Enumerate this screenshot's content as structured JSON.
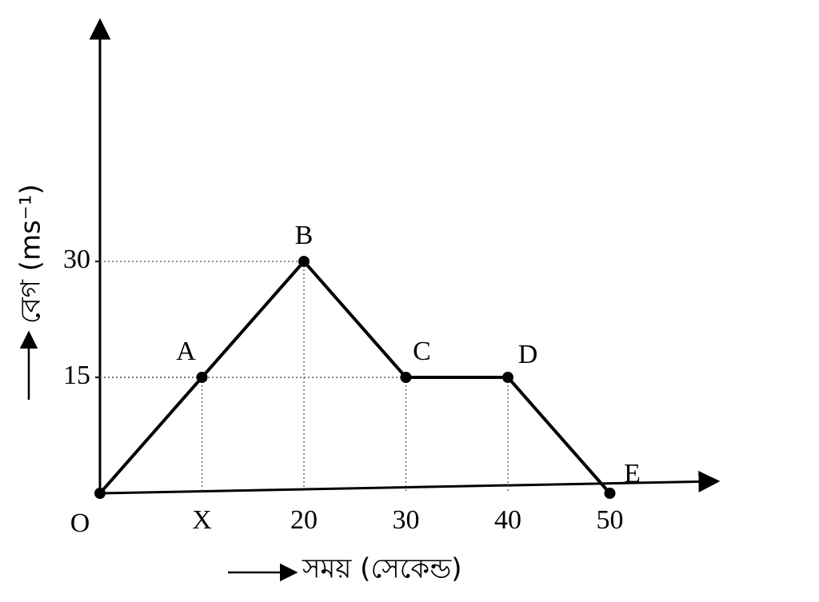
{
  "chart_data": {
    "type": "line",
    "x_label": "সময় (সেকেন্ড)",
    "y_label": "বেগ (ms⁻¹)",
    "x": [
      0,
      10,
      20,
      30,
      40,
      50
    ],
    "values": [
      0,
      15,
      30,
      15,
      15,
      0
    ],
    "point_labels": [
      "O",
      "A",
      "B",
      "C",
      "D",
      "E"
    ],
    "color": "#000000",
    "xlim": [
      0,
      60
    ],
    "ylim": [
      0,
      60
    ],
    "xticks": [
      {
        "value": 10,
        "label": "X"
      },
      20,
      30,
      40,
      50
    ],
    "yticks": [
      15,
      30
    ]
  }
}
